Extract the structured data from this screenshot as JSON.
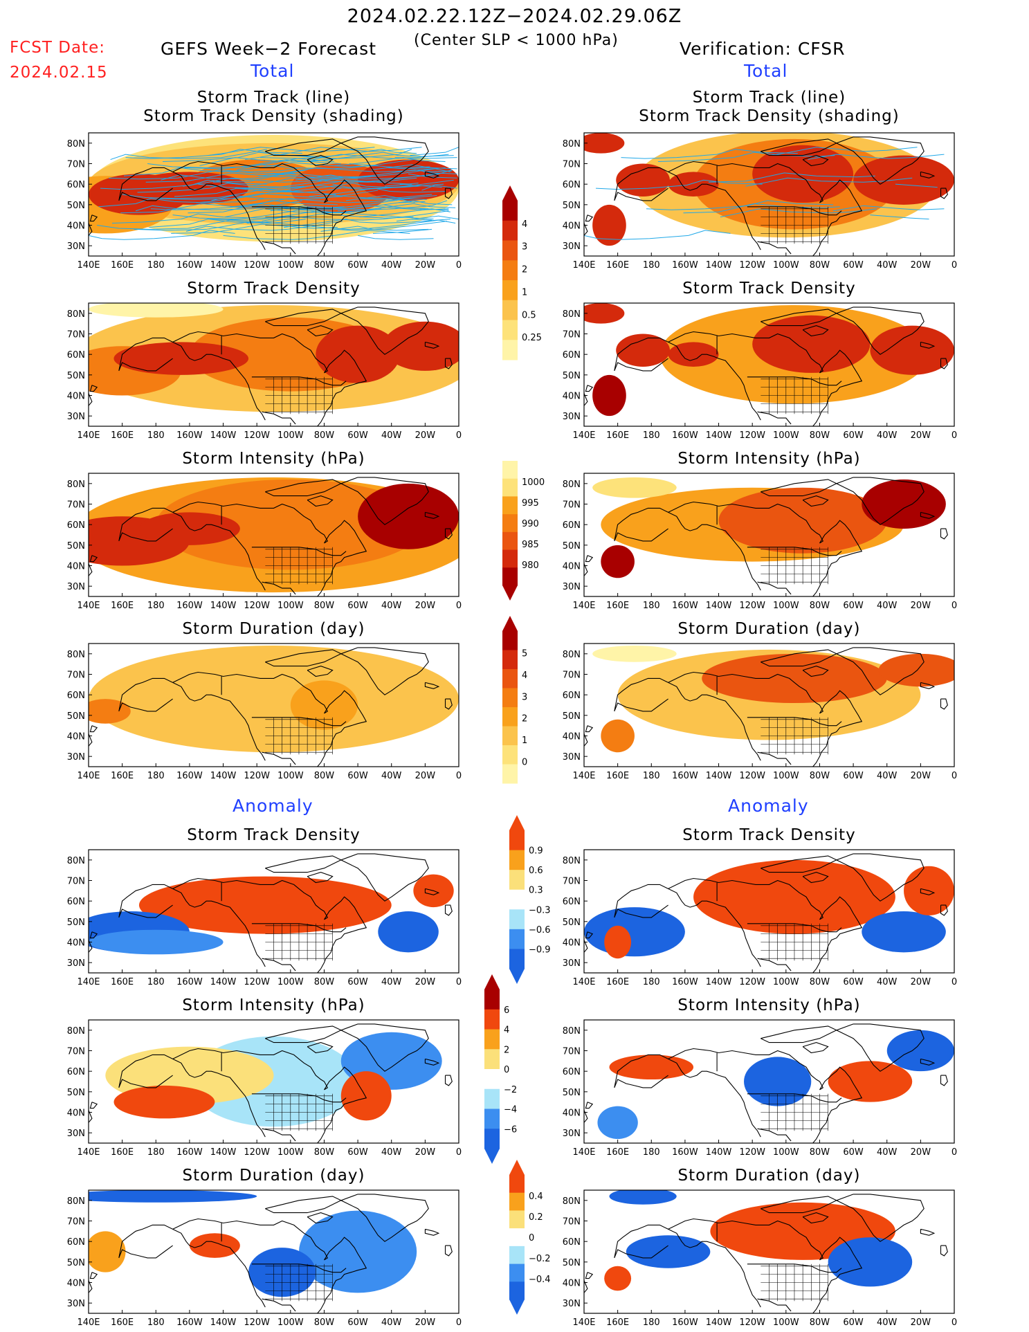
{
  "header": {
    "date_range": "2024.02.22.12Z−2024.02.29.06Z",
    "subtitle": "(Center SLP < 1000 hPa)",
    "fcst_label": "FCST Date:",
    "fcst_date": "2024.02.15",
    "left_title": "GEFS Week−2 Forecast",
    "right_title": "Verification: CFSR",
    "total_label": "Total",
    "anomaly_label": "Anomaly"
  },
  "panel_titles": {
    "track_line": "Storm Track (line)",
    "track_density_shading": "Storm Track Density (shading)",
    "track_density": "Storm Track Density",
    "intensity": "Storm Intensity (hPa)",
    "duration": "Storm Duration (day)"
  },
  "axes": {
    "lon_labels": [
      "140E",
      "160E",
      "180",
      "160W",
      "140W",
      "120W",
      "100W",
      "80W",
      "60W",
      "40W",
      "20W",
      "0"
    ],
    "lat_labels": [
      "80N",
      "70N",
      "60N",
      "50N",
      "40N",
      "30N"
    ]
  },
  "colorbars": {
    "density": [
      "4",
      "3",
      "2",
      "1",
      "0.5",
      "0.25"
    ],
    "intensity": [
      "1000",
      "995",
      "990",
      "985",
      "980"
    ],
    "duration": [
      "5",
      "4",
      "3",
      "2",
      "1",
      "0"
    ],
    "density_anom": [
      "0.9",
      "0.6",
      "0.3",
      "−0.3",
      "−0.6",
      "−0.9"
    ],
    "intensity_anom": [
      "6",
      "4",
      "2",
      "0",
      "−2",
      "−4",
      "−6"
    ],
    "duration_anom": [
      "0.4",
      "0.2",
      "0",
      "−0.2",
      "−0.4"
    ]
  },
  "colors": {
    "total_scale": [
      "#fff4a8",
      "#fde27a",
      "#fbc34c",
      "#f9a11c",
      "#f47d12",
      "#ea5510",
      "#d42a0c",
      "#a80000"
    ],
    "anom_scale": [
      "#1c64e0",
      "#3c8ef0",
      "#a8e4f8",
      "#ffffff",
      "#fbe07a",
      "#f9a11c",
      "#f0480e"
    ],
    "outline": "#000000",
    "track_line": "#20a8e8"
  }
}
